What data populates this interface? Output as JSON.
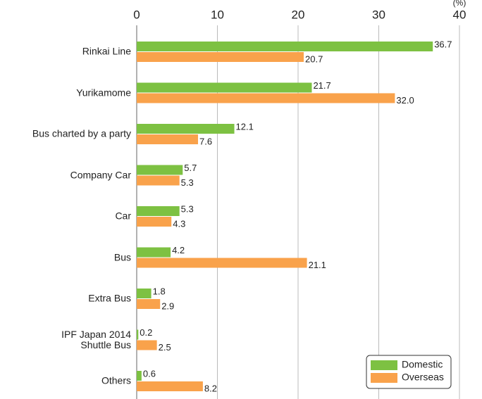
{
  "chart_data": {
    "type": "bar",
    "orientation": "horizontal",
    "x_label": "(%)",
    "categories": [
      "Rinkai Line",
      "Yurikamome",
      "Bus charted by a party",
      "Company Car",
      "Car",
      "Bus",
      "Extra Bus",
      "IPF Japan 2014\nShuttle Bus",
      "Others"
    ],
    "series": [
      {
        "name": "Domestic",
        "color": "#7dc142",
        "values": [
          36.7,
          21.7,
          12.1,
          5.7,
          5.3,
          4.2,
          1.8,
          0.2,
          0.6
        ],
        "value_labels": [
          "36.7",
          "21.7",
          "12.1",
          "5.7",
          "5.3",
          "4.2",
          "1.8",
          "0.2",
          "0.6"
        ]
      },
      {
        "name": "Overseas",
        "color": "#f9a24b",
        "values": [
          20.7,
          32.0,
          7.6,
          5.3,
          4.3,
          21.1,
          2.9,
          2.5,
          8.2
        ],
        "value_labels": [
          "20.7",
          "32.0",
          "7.6",
          "5.3",
          "4.3",
          "21.1",
          "2.9",
          "2.5",
          "8.2"
        ]
      }
    ],
    "xlim": [
      0,
      40
    ],
    "xticks": [
      0,
      10,
      20,
      30,
      40
    ],
    "grid": true,
    "legend": "lower right"
  }
}
